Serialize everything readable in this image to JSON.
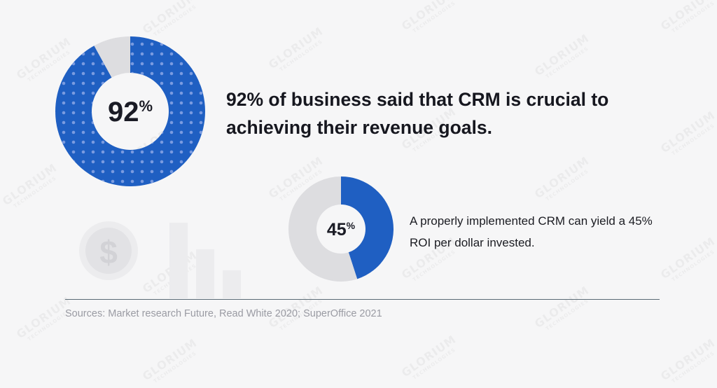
{
  "chart_data": [
    {
      "type": "pie",
      "variant": "donut",
      "values": [
        92,
        8
      ],
      "value_label": "92",
      "value_unit": "%",
      "colors": {
        "fill": "#1f5fc2",
        "rest": "#dddde0",
        "dots": "#7a9be0"
      },
      "caption": "92% of business said that CRM is crucial to achieving their revenue goals."
    },
    {
      "type": "pie",
      "variant": "donut",
      "values": [
        45,
        55
      ],
      "value_label": "45",
      "value_unit": "%",
      "colors": {
        "fill": "#1f5fc2",
        "rest": "#dddde0"
      },
      "caption": "A properly implemented CRM can yield a 45% ROI per dollar invested."
    }
  ],
  "sources": "Sources: Market research Future, Read White 2020; SuperOffice 2021",
  "watermark": {
    "line1": "GLORIUM",
    "line2": "TECHNOLOGIES"
  },
  "decor": {
    "coin_icon": "dollar-coin-icon",
    "bars_icon": "bar-chart-icon",
    "coin_symbol": "$"
  }
}
